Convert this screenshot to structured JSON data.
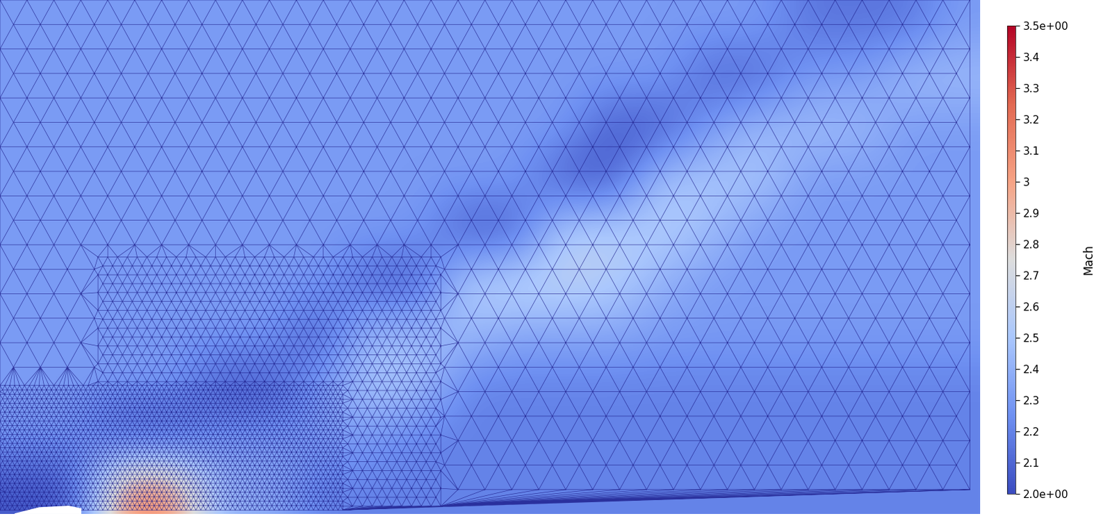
{
  "chart_data": {
    "type": "heatmap",
    "tick_labels": false,
    "cells": [
      [
        2.3,
        2.3,
        2.3,
        2.3,
        2.3,
        2.3,
        2.3,
        2.3,
        2.3,
        2.3,
        2.3,
        2.3,
        2.3,
        2.3,
        2.3,
        2.3,
        2.15,
        2.15,
        2.15,
        2.3
      ],
      [
        2.3,
        2.3,
        2.3,
        2.3,
        2.3,
        2.3,
        2.3,
        2.3,
        2.3,
        2.3,
        2.3,
        2.3,
        2.3,
        2.3,
        2.1,
        2.1,
        2.3,
        2.3,
        2.45,
        2.45
      ],
      [
        2.3,
        2.3,
        2.3,
        2.3,
        2.3,
        2.3,
        2.3,
        2.3,
        2.3,
        2.3,
        2.3,
        2.3,
        2.05,
        2.05,
        2.3,
        2.45,
        2.45,
        2.45,
        2.3,
        2.3
      ],
      [
        2.3,
        2.3,
        2.3,
        2.3,
        2.3,
        2.3,
        2.3,
        2.3,
        2.3,
        2.3,
        2.3,
        2.05,
        2.05,
        2.5,
        2.5,
        2.5,
        2.3,
        2.3,
        2.3,
        2.3
      ],
      [
        2.3,
        2.3,
        2.3,
        2.3,
        2.3,
        2.3,
        2.3,
        2.3,
        2.3,
        2.05,
        2.05,
        2.55,
        2.55,
        2.55,
        2.45,
        2.3,
        2.3,
        2.3,
        2.3,
        2.3
      ],
      [
        2.3,
        2.3,
        2.3,
        2.3,
        2.3,
        2.3,
        2.3,
        2.1,
        2.05,
        2.55,
        2.6,
        2.6,
        2.55,
        2.4,
        2.3,
        2.3,
        2.3,
        2.3,
        2.3,
        2.3
      ],
      [
        2.3,
        2.3,
        2.3,
        2.3,
        2.3,
        2.3,
        2.05,
        2.45,
        2.45,
        2.45,
        2.35,
        2.35,
        2.35,
        2.3,
        2.3,
        2.3,
        2.3,
        2.3,
        2.3,
        2.3
      ],
      [
        2.3,
        2.3,
        2.3,
        2.3,
        2.05,
        2.05,
        2.3,
        2.5,
        2.5,
        2.2,
        2.2,
        2.2,
        2.2,
        2.2,
        2.2,
        2.2,
        2.2,
        2.2,
        2.2,
        2.2
      ],
      [
        2.3,
        2.3,
        2.05,
        2.05,
        2.3,
        2.3,
        2.3,
        2.3,
        2.2,
        2.2,
        2.2,
        2.2,
        2.2,
        2.2,
        2.2,
        2.2,
        2.2,
        2.2,
        2.2,
        2.2
      ],
      [
        2.05,
        2.05,
        3.1,
        3.1,
        2.4,
        2.4,
        2.2,
        2.2,
        2.2,
        2.2,
        2.2,
        2.2,
        2.2,
        2.2,
        2.2,
        2.2,
        2.2,
        2.2,
        2.2,
        2.2
      ]
    ],
    "colorbar": {
      "label": "Mach",
      "range": [
        2.0,
        3.5
      ],
      "ticks": [
        {
          "value": 3.5,
          "label": "3.5e+00"
        },
        3.4,
        3.3,
        3.2,
        3.1,
        3,
        2.9,
        2.8,
        2.7,
        2.6,
        2.5,
        2.4,
        2.3,
        2.2,
        2.1,
        {
          "value": 2.0,
          "label": "2.0e+00"
        }
      ]
    }
  }
}
